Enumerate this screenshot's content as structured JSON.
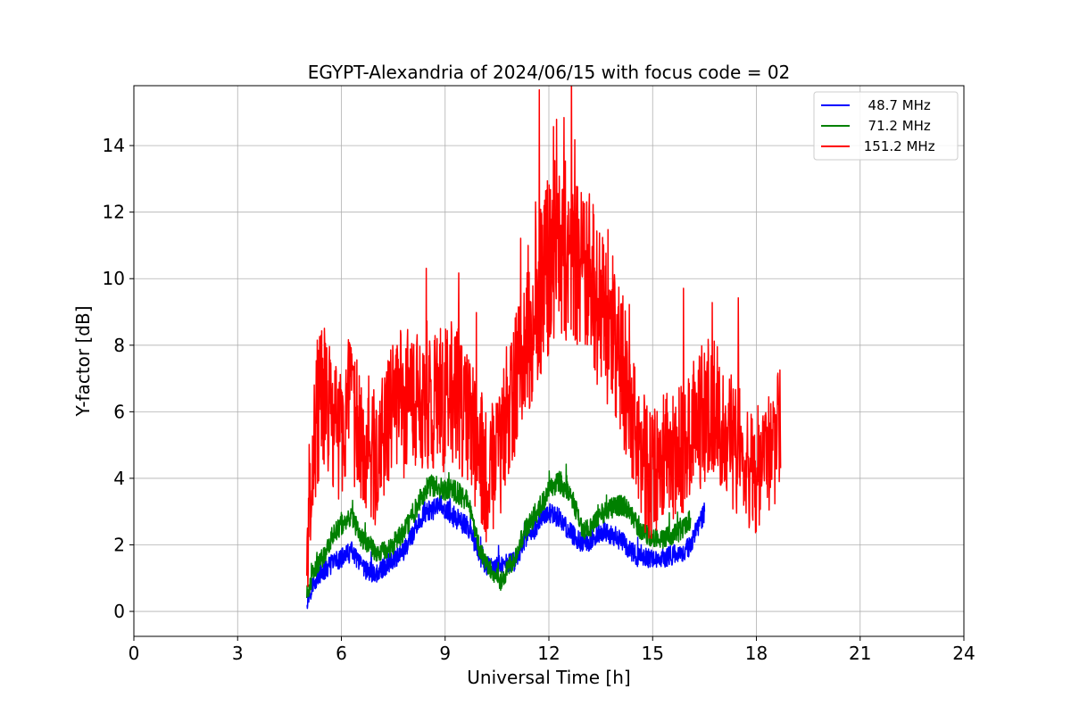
{
  "chart_data": {
    "type": "line",
    "title": "EGYPT-Alexandria of 2024/06/15 with focus code = 02",
    "xlabel": "Universal Time [h]",
    "ylabel": "Y-factor [dB]",
    "xlim": [
      0,
      24
    ],
    "ylim": [
      -0.75,
      15.8
    ],
    "xticks": [
      0,
      3,
      6,
      9,
      12,
      15,
      18,
      21,
      24
    ],
    "yticks": [
      0,
      2,
      4,
      6,
      8,
      10,
      12,
      14
    ],
    "grid": true,
    "legend_position": "top-right",
    "series": [
      {
        "name": "  48.7 MHz",
        "color": "#0000ff",
        "x": [
          5.0,
          5.2,
          5.5,
          5.8,
          6.0,
          6.3,
          6.6,
          7.0,
          7.4,
          7.8,
          8.2,
          8.4,
          8.6,
          8.9,
          9.3,
          9.7,
          10.0,
          10.3,
          10.6,
          11.0,
          11.3,
          11.6,
          12.0,
          12.3,
          12.6,
          13.0,
          13.3,
          13.6,
          14.0,
          14.3,
          14.6,
          15.0,
          15.3,
          15.6,
          15.9,
          16.1,
          16.3,
          16.5
        ],
        "y": [
          0.3,
          0.9,
          1.2,
          1.5,
          1.6,
          1.8,
          1.3,
          1.1,
          1.5,
          1.8,
          2.6,
          3.0,
          3.0,
          3.2,
          2.8,
          2.5,
          1.6,
          1.3,
          1.4,
          1.5,
          2.1,
          2.5,
          3.0,
          2.8,
          2.4,
          2.0,
          2.2,
          2.4,
          2.2,
          1.9,
          1.6,
          1.6,
          1.6,
          1.7,
          1.8,
          2.0,
          2.5,
          3.0
        ]
      },
      {
        "name": "  71.2 MHz",
        "color": "#008000",
        "x": [
          5.0,
          5.2,
          5.5,
          5.8,
          6.0,
          6.3,
          6.6,
          7.0,
          7.4,
          7.8,
          8.2,
          8.4,
          8.6,
          8.9,
          9.3,
          9.7,
          10.0,
          10.3,
          10.6,
          11.0,
          11.3,
          11.6,
          12.0,
          12.3,
          12.6,
          13.0,
          13.3,
          13.6,
          14.0,
          14.3,
          14.6,
          15.0,
          15.3,
          15.6,
          15.9,
          16.1
        ],
        "y": [
          0.5,
          1.2,
          1.7,
          2.4,
          2.6,
          2.8,
          2.2,
          1.8,
          1.9,
          2.4,
          3.2,
          3.6,
          3.8,
          3.7,
          3.6,
          3.3,
          1.8,
          1.3,
          0.9,
          1.6,
          2.4,
          2.9,
          3.6,
          3.9,
          3.6,
          2.4,
          2.6,
          3.0,
          3.2,
          3.1,
          2.5,
          2.2,
          2.2,
          2.3,
          2.5,
          2.8
        ]
      },
      {
        "name": " 151.2 MHz",
        "color": "#ff0000",
        "x": [
          5.0,
          5.1,
          5.3,
          5.5,
          5.8,
          6.0,
          6.2,
          6.5,
          6.8,
          7.0,
          7.3,
          7.6,
          7.9,
          8.2,
          8.5,
          8.8,
          9.1,
          9.4,
          9.7,
          10.0,
          10.2,
          10.5,
          10.8,
          11.1,
          11.4,
          11.7,
          12.0,
          12.3,
          12.6,
          12.9,
          13.2,
          13.5,
          13.8,
          14.1,
          14.4,
          14.7,
          15.0,
          15.3,
          15.6,
          15.9,
          16.2,
          16.5,
          16.8,
          17.1,
          17.4,
          17.7,
          18.0,
          18.3,
          18.5,
          18.7
        ],
        "y": [
          1.5,
          4.0,
          6.0,
          6.5,
          5.5,
          5.5,
          6.0,
          5.5,
          5.0,
          4.5,
          5.5,
          6.5,
          6.0,
          6.3,
          6.0,
          6.3,
          6.5,
          6.5,
          5.5,
          4.8,
          4.0,
          4.5,
          6.0,
          7.0,
          8.0,
          9.5,
          10.3,
          10.5,
          10.8,
          10.5,
          10.0,
          9.0,
          8.5,
          7.5,
          6.0,
          4.5,
          4.0,
          4.5,
          4.8,
          5.0,
          5.5,
          6.0,
          6.0,
          5.5,
          5.0,
          4.5,
          4.3,
          4.5,
          5.0,
          6.0
        ]
      }
    ]
  }
}
